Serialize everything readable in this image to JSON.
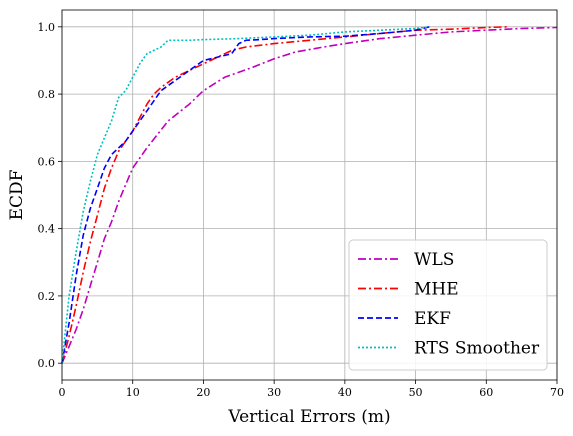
{
  "chart_data": {
    "type": "line",
    "title": "",
    "xlabel": "Vertical Errors (m)",
    "ylabel": "ECDF",
    "xlim": [
      0,
      70
    ],
    "ylim": [
      -0.05,
      1.05
    ],
    "xticks": [
      "0",
      "10",
      "20",
      "30",
      "40",
      "50",
      "60",
      "70"
    ],
    "yticks": [
      "0.0",
      "0.2",
      "0.4",
      "0.6",
      "0.8",
      "1.0"
    ],
    "grid": true,
    "legend_position": "bottom-right",
    "series": [
      {
        "name": "WLS",
        "color": "#bf00bf",
        "style": "dashdot",
        "x": [
          0,
          1,
          2,
          3,
          4,
          5,
          6,
          7,
          8,
          9,
          10,
          12,
          15,
          18,
          20,
          23,
          27,
          30,
          33,
          37,
          40,
          45,
          50,
          55,
          60,
          65,
          70
        ],
        "y": [
          0.0,
          0.05,
          0.1,
          0.16,
          0.23,
          0.3,
          0.37,
          0.42,
          0.48,
          0.53,
          0.58,
          0.64,
          0.72,
          0.77,
          0.81,
          0.85,
          0.88,
          0.905,
          0.925,
          0.94,
          0.95,
          0.965,
          0.975,
          0.985,
          0.99,
          0.995,
          0.998
        ]
      },
      {
        "name": "MHE",
        "color": "#ff0000",
        "style": "dashdot",
        "x": [
          0,
          1,
          2,
          3,
          4,
          5,
          6,
          7,
          8,
          9,
          10,
          11,
          12,
          13,
          14,
          16,
          18,
          20,
          22,
          24,
          26,
          28,
          30,
          35,
          40,
          45,
          50,
          55,
          60,
          63
        ],
        "y": [
          0.0,
          0.08,
          0.17,
          0.27,
          0.36,
          0.44,
          0.52,
          0.58,
          0.63,
          0.66,
          0.69,
          0.73,
          0.77,
          0.8,
          0.82,
          0.85,
          0.87,
          0.89,
          0.91,
          0.93,
          0.94,
          0.945,
          0.95,
          0.96,
          0.97,
          0.98,
          0.99,
          0.993,
          0.998,
          1.0
        ]
      },
      {
        "name": "EKF",
        "color": "#0000ff",
        "style": "dashed",
        "x": [
          0,
          1,
          2,
          3,
          4,
          5,
          6,
          7,
          8,
          9,
          10,
          11,
          12,
          13,
          14,
          16,
          18,
          20,
          22,
          24,
          25,
          26,
          28,
          30,
          35,
          40,
          45,
          50,
          52
        ],
        "y": [
          0.0,
          0.12,
          0.26,
          0.38,
          0.46,
          0.52,
          0.58,
          0.62,
          0.64,
          0.66,
          0.69,
          0.72,
          0.75,
          0.78,
          0.81,
          0.84,
          0.87,
          0.9,
          0.91,
          0.92,
          0.95,
          0.96,
          0.962,
          0.965,
          0.97,
          0.972,
          0.98,
          0.99,
          1.0
        ]
      },
      {
        "name": "RTS Smoother",
        "color": "#00bfbf",
        "style": "dotted",
        "x": [
          0,
          1,
          2,
          3,
          4,
          5,
          6,
          7,
          8,
          9,
          10,
          11,
          12,
          13,
          14,
          15,
          18,
          20,
          25,
          30,
          35,
          40,
          45,
          50,
          52
        ],
        "y": [
          0.0,
          0.2,
          0.33,
          0.45,
          0.54,
          0.62,
          0.67,
          0.72,
          0.79,
          0.81,
          0.85,
          0.89,
          0.92,
          0.93,
          0.94,
          0.96,
          0.96,
          0.962,
          0.965,
          0.97,
          0.975,
          0.985,
          0.99,
          0.995,
          1.0
        ]
      }
    ]
  }
}
